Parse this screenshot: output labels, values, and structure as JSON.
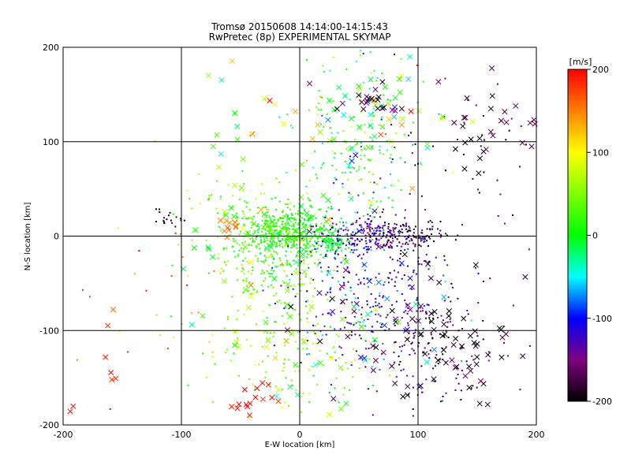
{
  "chart_data": {
    "type": "scatter",
    "title": "Tromsø 20150608 14:14:00-14:15:43",
    "subtitle": "RwPretec (8p) EXPERIMENTAL SKYMAP",
    "xlabel": "E-W location [km]",
    "ylabel": "N-S location [km]",
    "xlim": [
      -200,
      200
    ],
    "ylim": [
      -200,
      200
    ],
    "x_ticks": [
      "-200",
      "-100",
      "0",
      "100",
      "200"
    ],
    "y_ticks": [
      "-200",
      "-100",
      "0",
      "100",
      "200"
    ],
    "grid": true,
    "colorbar": {
      "unit": "[m/s]",
      "range": [
        -200,
        200
      ],
      "ticks": [
        "200",
        "100",
        "0",
        "-100",
        "-200"
      ],
      "palette": "rainbow (black to purple to blue to cyan to green to yellow to red)"
    },
    "marker_types": [
      "dot",
      "cross"
    ],
    "clusters": [
      {
        "cx": -10,
        "cy": 5,
        "sx": 18,
        "sy": 12,
        "n": 420,
        "v": 10,
        "vs": 18,
        "marker": "dot"
      },
      {
        "cx": -25,
        "cy": -25,
        "sx": 28,
        "sy": 30,
        "n": 260,
        "v": 35,
        "vs": 25,
        "marker": "dot"
      },
      {
        "cx": 28,
        "cy": -5,
        "sx": 8,
        "sy": 6,
        "n": 120,
        "v": -5,
        "vs": 12,
        "marker": "dot"
      },
      {
        "cx": 60,
        "cy": 0,
        "sx": 22,
        "sy": 10,
        "n": 220,
        "v": -130,
        "vs": 25,
        "marker": "dot"
      },
      {
        "cx": 95,
        "cy": 0,
        "sx": 15,
        "sy": 8,
        "n": 90,
        "v": -185,
        "vs": 15,
        "marker": "dot"
      },
      {
        "cx": 60,
        "cy": -70,
        "sx": 35,
        "sy": 45,
        "n": 300,
        "v": -120,
        "vs": 40,
        "marker": "dot"
      },
      {
        "cx": 115,
        "cy": -120,
        "sx": 25,
        "sy": 30,
        "n": 110,
        "v": -170,
        "vs": 25,
        "marker": "dot"
      },
      {
        "cx": 50,
        "cy": 100,
        "sx": 25,
        "sy": 50,
        "n": 220,
        "v": 5,
        "vs": 60,
        "marker": "dot"
      },
      {
        "cx": -10,
        "cy": -130,
        "sx": 35,
        "sy": 35,
        "n": 140,
        "v": 55,
        "vs": 35,
        "marker": "dot"
      },
      {
        "cx": -45,
        "cy": 25,
        "sx": 25,
        "sy": 20,
        "n": 70,
        "v": 40,
        "vs": 40,
        "marker": "dot"
      },
      {
        "cx": -110,
        "cy": 18,
        "sx": 6,
        "sy": 6,
        "n": 18,
        "v": -195,
        "vs": 10,
        "marker": "dot"
      },
      {
        "cx": -120,
        "cy": -60,
        "sx": 40,
        "sy": 60,
        "n": 30,
        "v": 150,
        "vs": 50,
        "marker": "dot"
      },
      {
        "cx": 155,
        "cy": 90,
        "sx": 35,
        "sy": 50,
        "n": 40,
        "v": -180,
        "vs": 30,
        "marker": "dot"
      },
      {
        "cx": 60,
        "cy": 130,
        "sx": 30,
        "sy": 40,
        "n": 60,
        "v": 30,
        "vs": 70,
        "marker": "cross"
      },
      {
        "cx": 60,
        "cy": 140,
        "sx": 15,
        "sy": 10,
        "n": 20,
        "v": -170,
        "vs": 25,
        "marker": "cross"
      },
      {
        "cx": 150,
        "cy": 110,
        "sx": 30,
        "sy": 25,
        "n": 30,
        "v": -185,
        "vs": 20,
        "marker": "cross"
      },
      {
        "cx": 130,
        "cy": -120,
        "sx": 35,
        "sy": 45,
        "n": 75,
        "v": -190,
        "vs": 15,
        "marker": "cross"
      },
      {
        "cx": 60,
        "cy": -70,
        "sx": 35,
        "sy": 45,
        "n": 40,
        "v": -100,
        "vs": 50,
        "marker": "cross"
      },
      {
        "cx": -20,
        "cy": -80,
        "sx": 45,
        "sy": 55,
        "n": 55,
        "v": 40,
        "vs": 50,
        "marker": "cross"
      },
      {
        "cx": -30,
        "cy": 10,
        "sx": 35,
        "sy": 20,
        "n": 35,
        "v": 20,
        "vs": 30,
        "marker": "cross"
      },
      {
        "cx": -35,
        "cy": -175,
        "sx": 15,
        "sy": 12,
        "n": 16,
        "v": 190,
        "vs": 10,
        "marker": "cross"
      },
      {
        "cx": -170,
        "cy": -130,
        "sx": 20,
        "sy": 30,
        "n": 8,
        "v": 185,
        "vs": 15,
        "marker": "cross"
      },
      {
        "cx": -60,
        "cy": 10,
        "sx": 5,
        "sy": 4,
        "n": 10,
        "v": 150,
        "vs": 10,
        "marker": "cross"
      },
      {
        "cx": -50,
        "cy": 140,
        "sx": 40,
        "sy": 50,
        "n": 20,
        "v": 80,
        "vs": 90,
        "marker": "cross"
      }
    ]
  }
}
